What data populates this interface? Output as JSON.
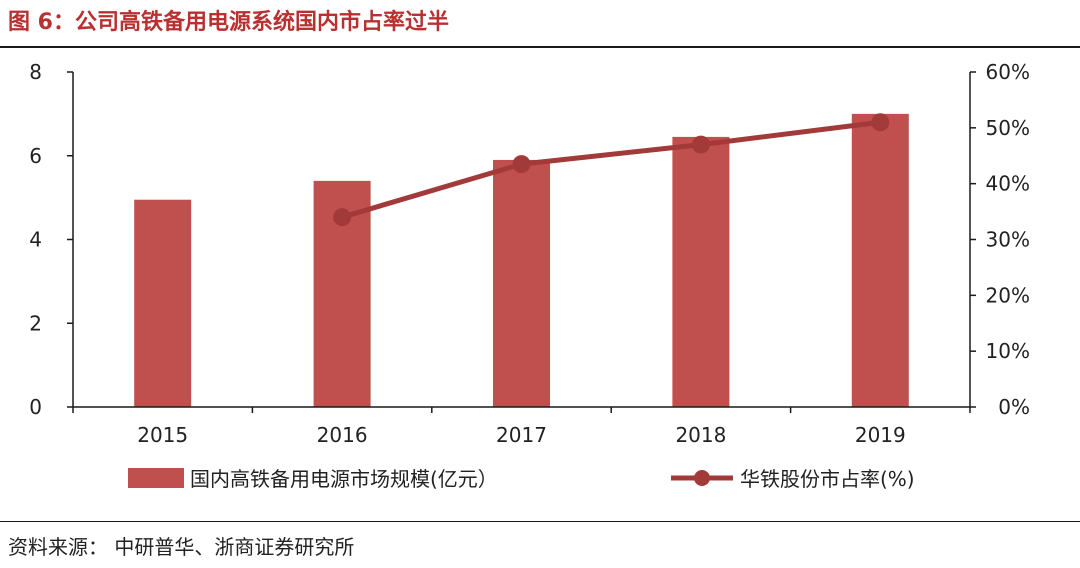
{
  "figure": {
    "title": "图 6：公司高铁备用电源系统国内市占率过半",
    "source": "资料来源： 中研普华、浙商证券研究所"
  },
  "colors": {
    "bar": "#c0504d",
    "line": "#a33a3a",
    "title": "#b83030",
    "axis": "#1a1a1a"
  },
  "chart_data": {
    "type": "bar",
    "categories": [
      "2015",
      "2016",
      "2017",
      "2018",
      "2019"
    ],
    "series": [
      {
        "name": "国内高铁备用电源市场规模(亿元）",
        "type": "bar",
        "axis": "left",
        "values": [
          4.95,
          5.4,
          5.9,
          6.45,
          7.0
        ]
      },
      {
        "name": "华铁股份市占率(%)",
        "type": "line",
        "axis": "right",
        "values": [
          null,
          0.34,
          0.435,
          0.47,
          0.51
        ]
      }
    ],
    "y_left": {
      "min": 0,
      "max": 8,
      "ticks": [
        "0",
        "2",
        "4",
        "6",
        "8"
      ]
    },
    "y_right": {
      "min": 0,
      "max": 0.6,
      "ticks": [
        "0%",
        "10%",
        "20%",
        "30%",
        "40%",
        "50%",
        "60%"
      ]
    },
    "grid": false,
    "legend_position": "bottom"
  }
}
